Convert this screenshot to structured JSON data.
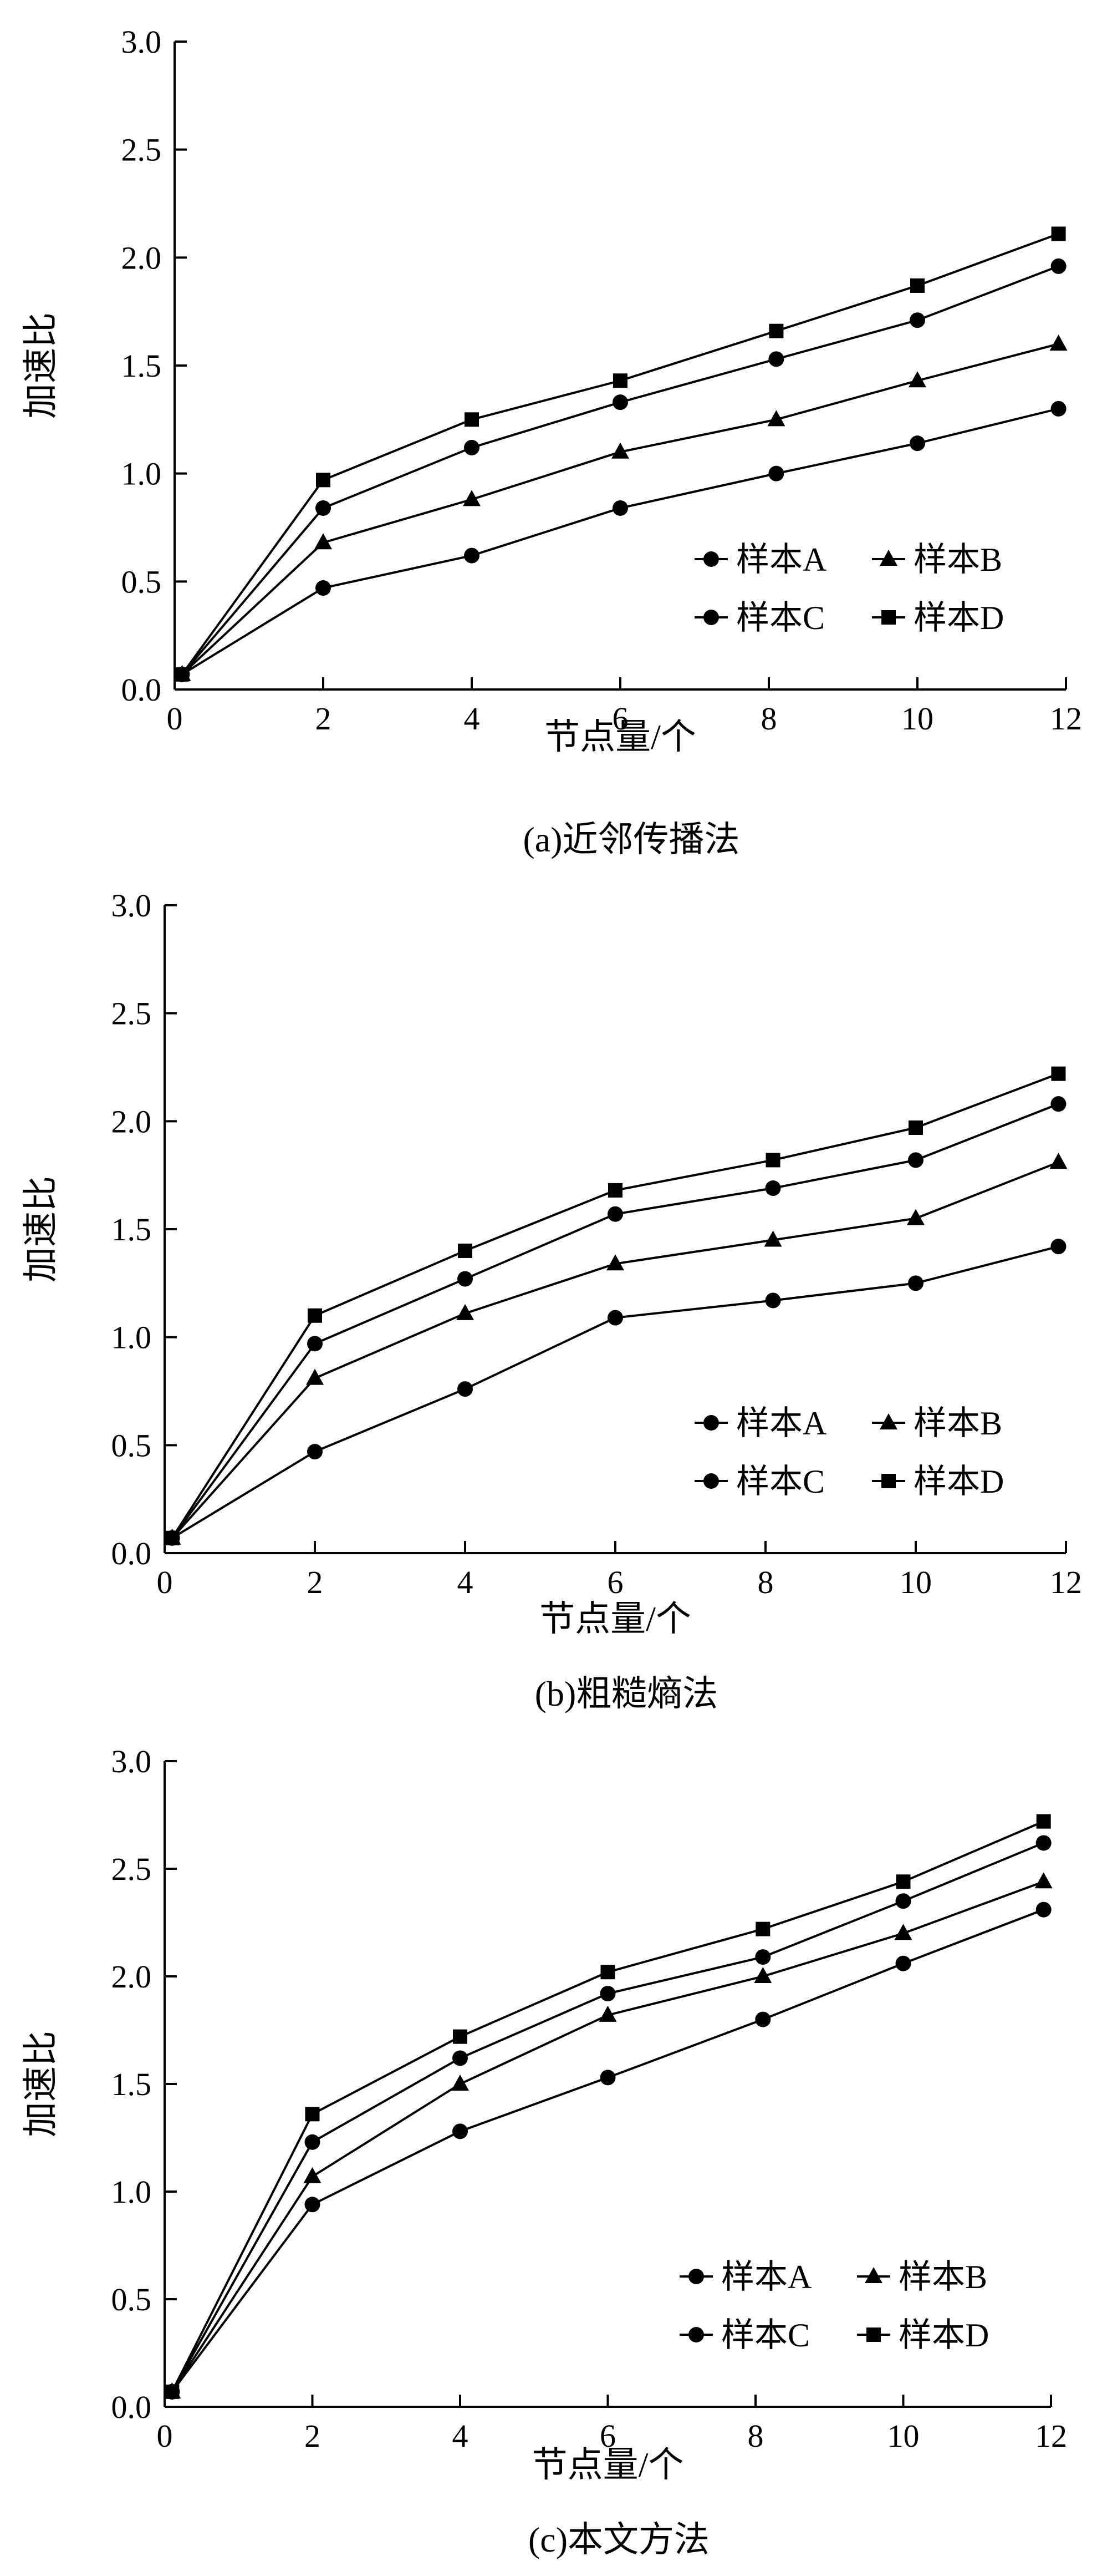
{
  "chart_data": [
    {
      "type": "line",
      "caption": "(a)近邻传播法",
      "xlabel": "节点量/个",
      "ylabel": "加速比",
      "xlim": [
        0,
        12
      ],
      "ylim": [
        0,
        3.0
      ],
      "xticks": [
        "0",
        "2",
        "4",
        "6",
        "8",
        "10",
        "12"
      ],
      "yticks": [
        "0.0",
        "0.5",
        "1.0",
        "1.5",
        "2.0",
        "2.5",
        "3.0"
      ],
      "legend_position": "bottom-right",
      "x": [
        0.1,
        2,
        4,
        6,
        8.1,
        10,
        11.9
      ],
      "series": [
        {
          "name": "样本A",
          "marker": "circle",
          "values": [
            0.07,
            0.47,
            0.62,
            0.84,
            1.0,
            1.14,
            1.3
          ]
        },
        {
          "name": "样本B",
          "marker": "triangle",
          "values": [
            0.07,
            0.68,
            0.88,
            1.1,
            1.25,
            1.43,
            1.6
          ]
        },
        {
          "name": "样本C",
          "marker": "circle",
          "values": [
            0.07,
            0.84,
            1.12,
            1.33,
            1.53,
            1.71,
            1.96
          ]
        },
        {
          "name": "样本D",
          "marker": "square",
          "values": [
            0.07,
            0.97,
            1.25,
            1.43,
            1.66,
            1.87,
            2.11
          ]
        }
      ]
    },
    {
      "type": "line",
      "caption": "(b)粗糙熵法",
      "xlabel": "节点量/个",
      "ylabel": "加速比",
      "xlim": [
        0,
        12
      ],
      "ylim": [
        0,
        3.0
      ],
      "xticks": [
        "0",
        "2",
        "4",
        "6",
        "8",
        "10",
        "12"
      ],
      "yticks": [
        "0.0",
        "0.5",
        "1.0",
        "1.5",
        "2.0",
        "2.5",
        "3.0"
      ],
      "legend_position": "bottom-right",
      "x": [
        0.1,
        2,
        4,
        6,
        8.1,
        10,
        11.9
      ],
      "series": [
        {
          "name": "样本A",
          "marker": "circle",
          "values": [
            0.07,
            0.47,
            0.76,
            1.09,
            1.17,
            1.25,
            1.42
          ]
        },
        {
          "name": "样本B",
          "marker": "triangle",
          "values": [
            0.07,
            0.81,
            1.11,
            1.34,
            1.45,
            1.55,
            1.81
          ]
        },
        {
          "name": "样本C",
          "marker": "circle",
          "values": [
            0.07,
            0.97,
            1.27,
            1.57,
            1.69,
            1.82,
            2.08
          ]
        },
        {
          "name": "样本D",
          "marker": "square",
          "values": [
            0.07,
            1.1,
            1.4,
            1.68,
            1.82,
            1.97,
            2.22
          ]
        }
      ]
    },
    {
      "type": "line",
      "caption": "(c)本文方法",
      "xlabel": "节点量/个",
      "ylabel": "加速比",
      "xlim": [
        0,
        12
      ],
      "ylim": [
        0,
        3.0
      ],
      "xticks": [
        "0",
        "2",
        "4",
        "6",
        "8",
        "10",
        "12"
      ],
      "yticks": [
        "0.0",
        "0.5",
        "1.0",
        "1.5",
        "2.0",
        "2.5",
        "3.0"
      ],
      "legend_position": "bottom-right",
      "x": [
        0.1,
        2,
        4,
        6,
        8.1,
        10,
        11.9
      ],
      "series": [
        {
          "name": "样本A",
          "marker": "circle",
          "values": [
            0.07,
            0.94,
            1.28,
            1.53,
            1.8,
            2.06,
            2.31
          ]
        },
        {
          "name": "样本B",
          "marker": "triangle",
          "values": [
            0.07,
            1.07,
            1.5,
            1.82,
            2.0,
            2.2,
            2.44
          ]
        },
        {
          "name": "样本C",
          "marker": "circle",
          "values": [
            0.07,
            1.23,
            1.62,
            1.92,
            2.09,
            2.35,
            2.62
          ]
        },
        {
          "name": "样本D",
          "marker": "square",
          "values": [
            0.07,
            1.36,
            1.72,
            2.02,
            2.22,
            2.44,
            2.72
          ]
        }
      ]
    }
  ]
}
